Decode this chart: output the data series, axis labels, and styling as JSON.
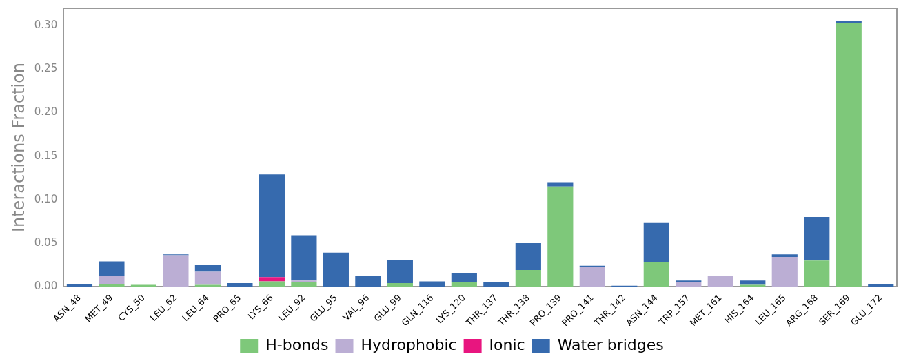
{
  "chart_data": {
    "type": "bar",
    "stacked": true,
    "ylabel": "Interactions Fraction",
    "categories": [
      "ASN_48",
      "MET_49",
      "CYS_50",
      "LEU_62",
      "LEU_64",
      "PRO_65",
      "LYS_66",
      "LEU_92",
      "GLU_95",
      "VAL_96",
      "GLU_99",
      "GLN_116",
      "LYS_120",
      "THR_137",
      "THR_138",
      "PRO_139",
      "PRO_141",
      "THR_142",
      "ASN_144",
      "TRP_157",
      "MET_161",
      "HIS_164",
      "LEU_165",
      "ARG_168",
      "SER_169",
      "GLU_172"
    ],
    "series": [
      {
        "name": "H-bonds",
        "color": "#7ec87a",
        "values": [
          null,
          0.003,
          0.002,
          0,
          0.002,
          0,
          0.006,
          0.005,
          0,
          0,
          0.004,
          0,
          0.005,
          0,
          0.019,
          0.115,
          0,
          0,
          0.028,
          null,
          0,
          0.002,
          0,
          0.03,
          0.303,
          0
        ]
      },
      {
        "name": "Hydrophobic",
        "color": "#bbaed4",
        "values": [
          0,
          0.009,
          0,
          0.036,
          0.015,
          0,
          0,
          0.002,
          0,
          0,
          0,
          0,
          0,
          0,
          0,
          0,
          0.023,
          0,
          0,
          0.005,
          0.012,
          0,
          0.034,
          0,
          0,
          0
        ]
      },
      {
        "name": "Ionic",
        "color": "#e8157f",
        "values": [
          0,
          0,
          0,
          0,
          0,
          0,
          0.005,
          0,
          0,
          0,
          0,
          0,
          0,
          0,
          0,
          0,
          0,
          0,
          0,
          0,
          0,
          0,
          0,
          0,
          0,
          0
        ]
      },
      {
        "name": "Water bridges",
        "color": "#366aae",
        "values": [
          0.003,
          0.017,
          0,
          0.001,
          0.008,
          0.004,
          0.118,
          0.052,
          0.039,
          0.012,
          0.027,
          0.006,
          0.01,
          0.005,
          0.031,
          0.005,
          0.001,
          0.001,
          0.045,
          0.002,
          0,
          0.005,
          0.003,
          0.05,
          0.002,
          0.003
        ]
      }
    ],
    "ylim": [
      0,
      0.32
    ],
    "yticks": [
      {
        "value": 0,
        "label": "0.00"
      },
      0.05,
      {
        "value": 0.1,
        "label": "0.10"
      },
      0.15,
      {
        "value": 0.2,
        "label": "0.20"
      },
      0.25,
      {
        "value": 0.3,
        "label": "0.30"
      }
    ],
    "grid": false,
    "legend": "bottom"
  }
}
